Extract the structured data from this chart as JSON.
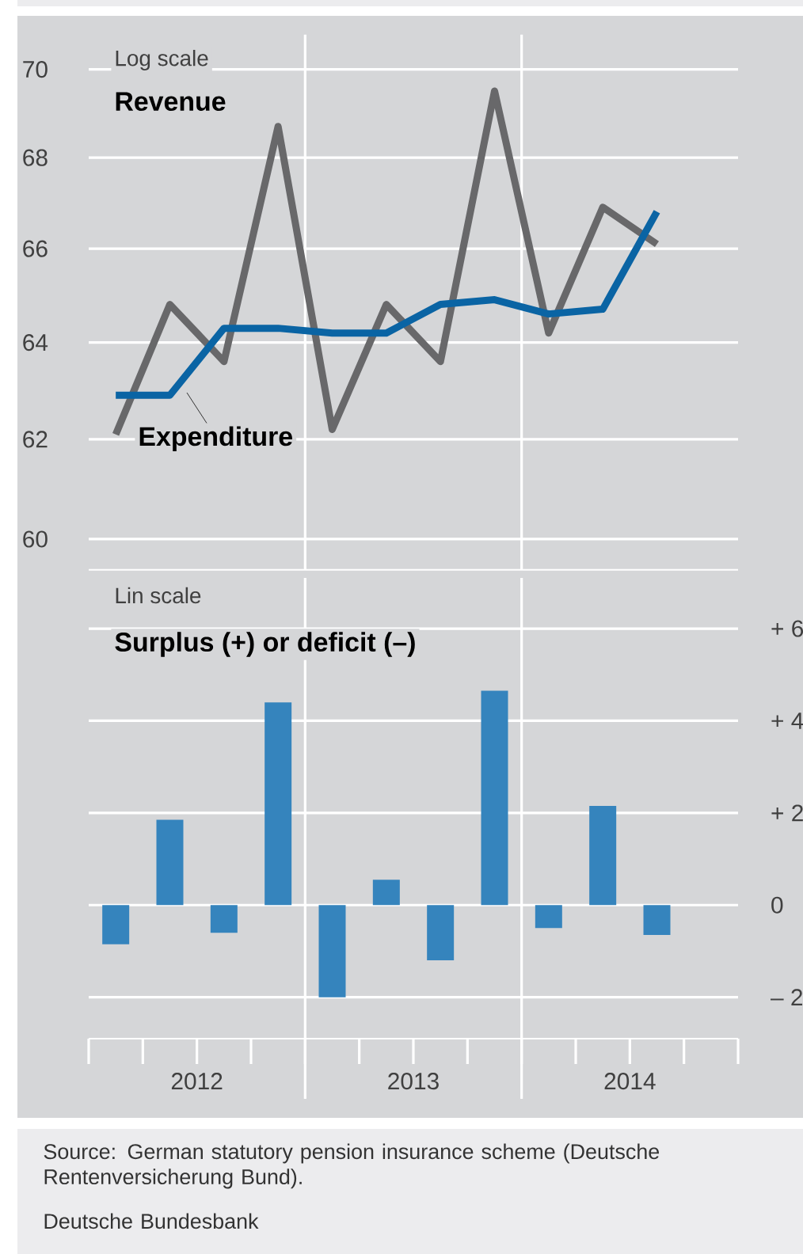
{
  "chart_data": [
    {
      "type": "line",
      "subtitle": "Log scale",
      "x": [
        2012.125,
        2012.375,
        2012.625,
        2012.875,
        2013.125,
        2013.375,
        2013.625,
        2013.875,
        2014.125,
        2014.375,
        2014.625
      ],
      "xlim": [
        2012,
        2015
      ],
      "log": "y",
      "ylim": [
        59.4,
        70.8
      ],
      "yticks": [
        60,
        62,
        64,
        66,
        68,
        70
      ],
      "tick_labels": "y",
      "grid": "y",
      "ref_lines": [
        {
          "axis": "x",
          "value": 2013,
          "color": "#ffffff"
        },
        {
          "axis": "x",
          "value": 2014,
          "color": "#ffffff"
        }
      ],
      "series": [
        {
          "name": "Revenue",
          "color": "#68686a",
          "values": [
            62.1,
            64.8,
            63.6,
            68.7,
            62.2,
            64.8,
            63.6,
            69.5,
            64.2,
            66.9,
            66.1
          ]
        },
        {
          "name": "Expenditure",
          "color": "#0a64a4",
          "values": [
            62.9,
            62.9,
            64.3,
            64.3,
            64.2,
            64.2,
            64.8,
            64.9,
            64.6,
            64.7,
            66.8
          ]
        }
      ]
    },
    {
      "type": "bar",
      "title": "Surplus (+) or deficit (–)",
      "subtitle": "Lin scale",
      "x": [
        2012.125,
        2012.375,
        2012.625,
        2012.875,
        2013.125,
        2013.375,
        2013.625,
        2013.875,
        2014.125,
        2014.375,
        2014.625
      ],
      "values": [
        -0.85,
        1.85,
        -0.6,
        4.4,
        -2.0,
        0.55,
        -1.2,
        4.65,
        -0.5,
        2.15,
        -0.65
      ],
      "color": "#3584bd",
      "xlim": [
        2012,
        2015
      ],
      "xticks": [
        {
          "value": 2012,
          "label": null
        },
        {
          "value": 2012.25,
          "label": null
        },
        {
          "value": 2012.5,
          "label": "2012"
        },
        {
          "value": 2012.75,
          "label": null
        },
        {
          "value": 2013,
          "label": null
        },
        {
          "value": 2013.25,
          "label": null
        },
        {
          "value": 2013.5,
          "label": "2013"
        },
        {
          "value": 2013.75,
          "label": null
        },
        {
          "value": 2014,
          "label": null
        },
        {
          "value": 2014.25,
          "label": null
        },
        {
          "value": 2014.5,
          "label": "2014"
        },
        {
          "value": 2014.75,
          "label": null
        },
        {
          "value": 2015,
          "label": null
        }
      ],
      "ylim": [
        -2.9,
        7.1
      ],
      "yticks": [
        {
          "value": -2,
          "label": "– 2"
        },
        0,
        {
          "value": 2,
          "label": "+ 2"
        },
        {
          "value": 4,
          "label": "+ 4"
        },
        {
          "value": 6,
          "label": "+ 6"
        }
      ],
      "grid": "y",
      "ref_lines": [
        {
          "axis": "x",
          "value": 2013,
          "color": "#ffffff"
        },
        {
          "axis": "x",
          "value": 2014,
          "color": "#ffffff"
        }
      ],
      "annotations": [
        "Source: German statutory pension insurance scheme (Deutsche Rentenversicherung Bund).",
        "Deutsche Bundesbank"
      ]
    }
  ]
}
